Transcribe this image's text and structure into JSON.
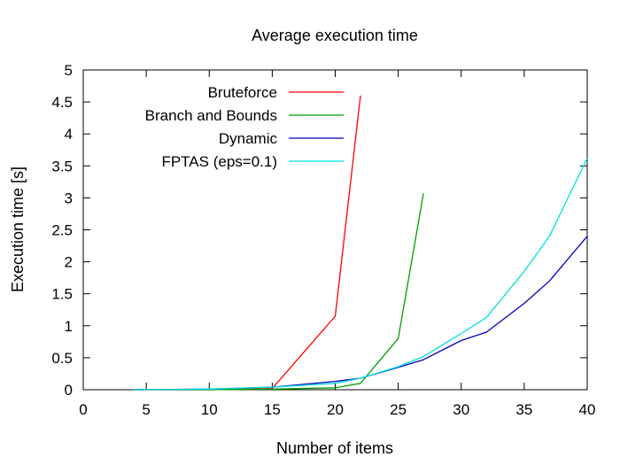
{
  "chart_data": {
    "type": "line",
    "title": "Average execution time",
    "xlabel": "Number of items",
    "ylabel": "Execution time [s]",
    "xlim": [
      0,
      40
    ],
    "ylim": [
      0,
      5
    ],
    "xticks": [
      0,
      5,
      10,
      15,
      20,
      25,
      30,
      35,
      40
    ],
    "yticks": [
      0,
      0.5,
      1,
      1.5,
      2,
      2.5,
      3,
      3.5,
      4,
      4.5,
      5
    ],
    "grid": false,
    "legend_position": "top-left",
    "series": [
      {
        "name": "Bruteforce",
        "color": "#ff0000",
        "x": [
          4,
          10,
          15,
          20,
          22
        ],
        "y": [
          0,
          0,
          0.02,
          1.15,
          4.6
        ]
      },
      {
        "name": "Branch and Bounds",
        "color": "#00a000",
        "x": [
          4,
          10,
          15,
          20,
          22,
          25,
          27
        ],
        "y": [
          0,
          0,
          0.01,
          0.03,
          0.1,
          0.8,
          3.07
        ]
      },
      {
        "name": "Dynamic",
        "color": "#0000c0",
        "x": [
          4,
          10,
          15,
          20,
          22,
          25,
          27,
          30,
          32,
          35,
          37,
          40
        ],
        "y": [
          0,
          0.01,
          0.04,
          0.13,
          0.18,
          0.35,
          0.47,
          0.77,
          0.9,
          1.35,
          1.7,
          2.4
        ]
      },
      {
        "name": "FPTAS (eps=0.1)",
        "color": "#00e0e0",
        "x": [
          4,
          10,
          15,
          20,
          22,
          25,
          27,
          30,
          32,
          35,
          37,
          40
        ],
        "y": [
          0,
          0.01,
          0.04,
          0.1,
          0.18,
          0.36,
          0.52,
          0.88,
          1.13,
          1.85,
          2.4,
          3.62
        ]
      }
    ]
  }
}
